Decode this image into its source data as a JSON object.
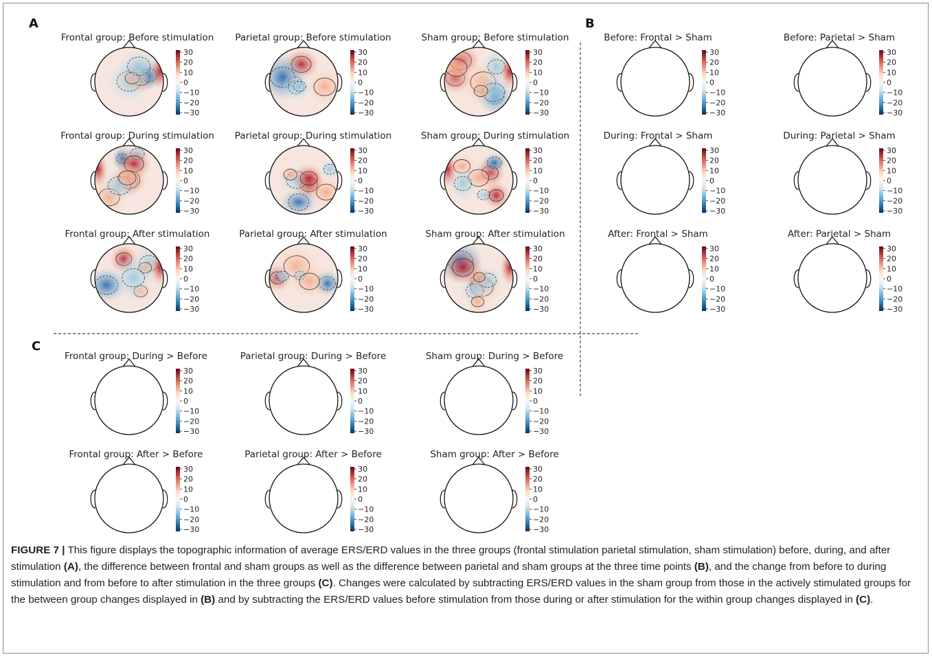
{
  "panels": {
    "A": {
      "letter": "A",
      "maps": [
        {
          "title": "Frontal group: Before stimulation",
          "variant": 0
        },
        {
          "title": "Parietal group: Before stimulation",
          "variant": 1
        },
        {
          "title": "Sham group: Before stimulation",
          "variant": 2
        },
        {
          "title": "Frontal group: During stimulation",
          "variant": 3
        },
        {
          "title": "Parietal group: During stimulation",
          "variant": 4
        },
        {
          "title": "Sham group: During stimulation",
          "variant": 5
        },
        {
          "title": "Frontal group: After stimulation",
          "variant": 6
        },
        {
          "title": "Parietal group: After stimulation",
          "variant": 7
        },
        {
          "title": "Sham group: After stimulation",
          "variant": 8
        }
      ]
    },
    "B": {
      "letter": "B",
      "maps": [
        {
          "title": "Before: Frontal > Sham",
          "variant": 9
        },
        {
          "title": "Before: Parietal > Sham",
          "variant": 10
        },
        {
          "title": "During: Frontal > Sham",
          "variant": 11
        },
        {
          "title": "During: Parietal > Sham",
          "variant": 12
        },
        {
          "title": "After: Frontal > Sham",
          "variant": 13
        },
        {
          "title": "After: Parietal > Sham",
          "variant": 14
        }
      ]
    },
    "C": {
      "letter": "C",
      "maps": [
        {
          "title": "Frontal group: During > Before",
          "variant": 15
        },
        {
          "title": "Parietal group: During > Before",
          "variant": 16
        },
        {
          "title": "Sham group: During > Before",
          "variant": 17
        },
        {
          "title": "Frontal group: After > Before",
          "variant": 18
        },
        {
          "title": "Parietal group: After > Before",
          "variant": 19
        },
        {
          "title": "Sham group: After > Before",
          "variant": 20
        }
      ]
    }
  },
  "colorbar": {
    "ticks": [
      "30",
      "20",
      "10",
      "0",
      "−10",
      "−20",
      "−30"
    ],
    "colors": {
      "high": "#67001f",
      "mid_high": "#d6604d",
      "zero": "#f7f7f7",
      "mid_low": "#4393c3",
      "low": "#053061"
    }
  },
  "caption": {
    "label": "FIGURE 7 |",
    "parts": [
      {
        "text": " This figure displays the topographic information of average ERS/ERD values in the three groups (frontal stimulation parietal stimulation, sham stimulation) before, during, and after stimulation ",
        "bold": false
      },
      {
        "text": "(A)",
        "bold": true
      },
      {
        "text": ", the difference between frontal and sham groups as well as the difference between parietal and sham groups at the three time points ",
        "bold": false
      },
      {
        "text": "(B)",
        "bold": true
      },
      {
        "text": ", and the change from before to during stimulation and from before to after stimulation in the three groups ",
        "bold": false
      },
      {
        "text": "(C)",
        "bold": true
      },
      {
        "text": ". Changes were calculated by subtracting ERS/ERD values in the sham group from those in the actively stimulated groups for the between group changes displayed in ",
        "bold": false
      },
      {
        "text": "(B)",
        "bold": true
      },
      {
        "text": " and by subtracting the ERS/ERD values before stimulation from those during or after stimulation for the within group changes displayed in ",
        "bold": false
      },
      {
        "text": "(C)",
        "bold": true
      },
      {
        "text": ".",
        "bold": false
      }
    ]
  }
}
